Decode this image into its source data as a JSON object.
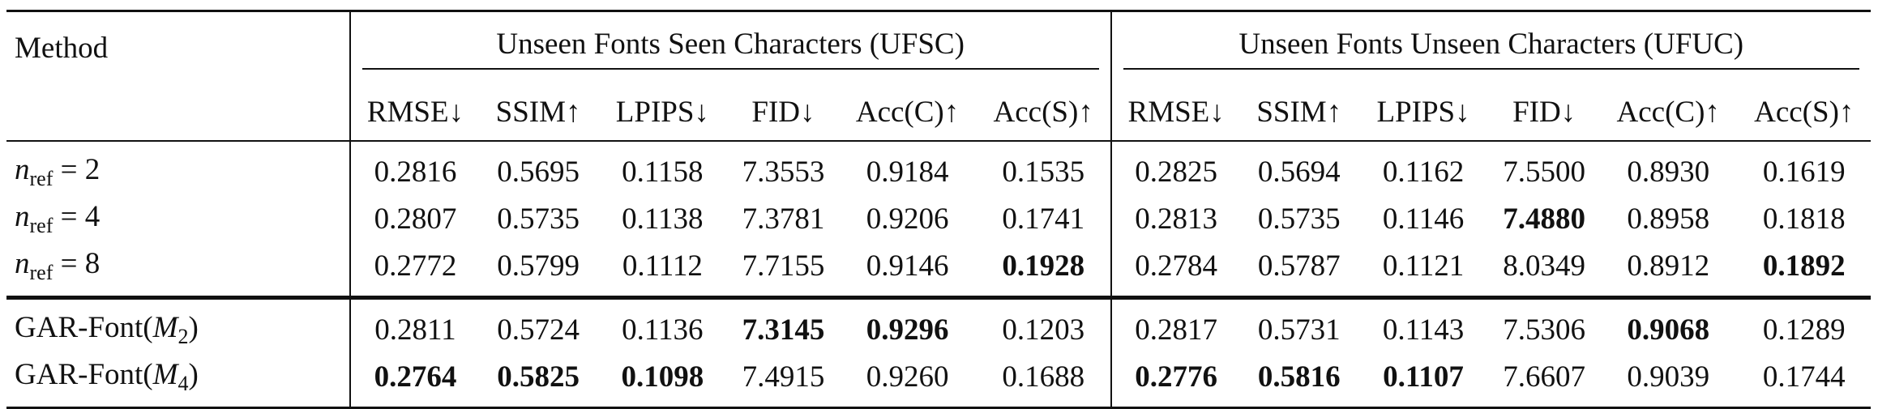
{
  "header": {
    "method_label": "Method",
    "group_ufsc": "Unseen Fonts Seen Characters (UFSC)",
    "group_ufuc": "Unseen Fonts Unseen Characters (UFUC)",
    "metrics": [
      "RMSE↓",
      "SSIM↑",
      "LPIPS↓",
      "FID↓",
      "Acc(C)↑",
      "Acc(S)↑"
    ]
  },
  "rows": [
    {
      "method": {
        "n": "n",
        "sub": "ref",
        "rest": " = 2"
      },
      "ufsc": [
        "0.2816",
        "0.5695",
        "0.1158",
        "7.3553",
        "0.9184",
        "0.1535"
      ],
      "ufuc": [
        "0.2825",
        "0.5694",
        "0.1162",
        "7.5500",
        "0.8930",
        "0.1619"
      ]
    },
    {
      "method": {
        "n": "n",
        "sub": "ref",
        "rest": " = 4"
      },
      "ufsc": [
        "0.2807",
        "0.5735",
        "0.1138",
        "7.3781",
        "0.9206",
        "0.1741"
      ],
      "ufuc": [
        "0.2813",
        "0.5735",
        "0.1146",
        "7.4880",
        "0.8958",
        "0.1818"
      ]
    },
    {
      "method": {
        "n": "n",
        "sub": "ref",
        "rest": " = 8"
      },
      "ufsc": [
        "0.2772",
        "0.5799",
        "0.1112",
        "7.7155",
        "0.9146",
        "0.1928"
      ],
      "ufuc": [
        "0.2784",
        "0.5787",
        "0.1121",
        "8.0349",
        "0.8912",
        "0.1892"
      ]
    },
    {
      "method": {
        "pre": "GAR-Font(",
        "m": "M",
        "sub": "2",
        "post": ")"
      },
      "ufsc": [
        "0.2811",
        "0.5724",
        "0.1136",
        "7.3145",
        "0.9296",
        "0.1203"
      ],
      "ufuc": [
        "0.2817",
        "0.5731",
        "0.1143",
        "7.5306",
        "0.9068",
        "0.1289"
      ]
    },
    {
      "method": {
        "pre": "GAR-Font(",
        "m": "M",
        "sub": "4",
        "post": ")"
      },
      "ufsc": [
        "0.2764",
        "0.5825",
        "0.1098",
        "7.4915",
        "0.9260",
        "0.1688"
      ],
      "ufuc": [
        "0.2776",
        "0.5816",
        "0.1107",
        "7.6607",
        "0.9039",
        "0.1744"
      ]
    }
  ]
}
